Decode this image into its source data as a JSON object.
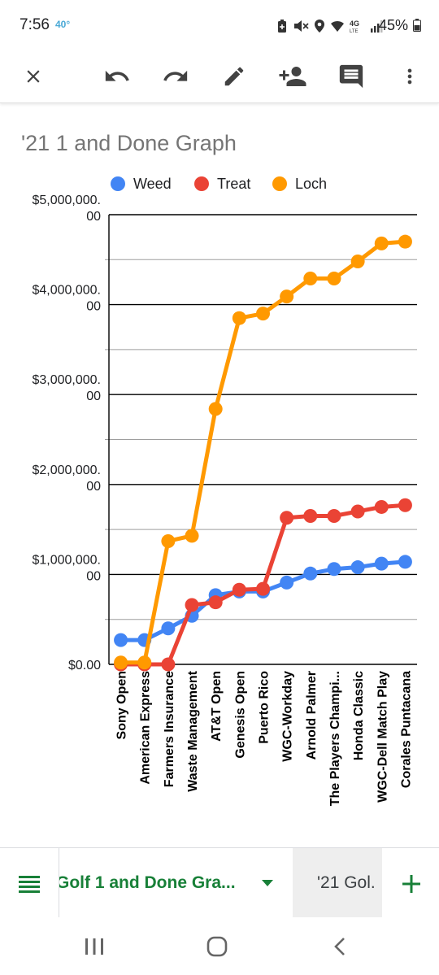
{
  "status_bar": {
    "time": "7:56",
    "temperature": "40°",
    "battery": "45%",
    "icons": [
      "battery-saver-icon",
      "mute-icon",
      "location-icon",
      "wifi-icon",
      "4g-lte-icon",
      "signal-icon",
      "battery-icon"
    ]
  },
  "toolbar": {
    "icons": [
      "close-icon",
      "undo-icon",
      "redo-icon",
      "edit-icon",
      "add-person-icon",
      "comment-icon",
      "more-vert-icon"
    ]
  },
  "chart_data": {
    "type": "line",
    "title": "'21 1 and Done Graph",
    "legend_position": "top",
    "categories": [
      "Sony Open",
      "American Express",
      "Farmers Insurance",
      "Waste Management",
      "AT&T Open",
      "Genesis Open",
      "Puerto Rico",
      "WGC-Workday",
      "Arnold Palmer",
      "The Players Champi...",
      "Honda Classic",
      "WGC-Dell Match Play",
      "Corales Puntacana"
    ],
    "y_tick_labels": [
      "$0.00",
      "$1,000,000.\n00",
      "$2,000,000.\n00",
      "$3,000,000.\n00",
      "$4,000,000.\n00",
      "$5,000,000.\n00"
    ],
    "ylim": [
      0,
      5000000
    ],
    "y_major_step": 1000000,
    "y_minor_step": 500000,
    "series": [
      {
        "name": "Weed",
        "color": "#4285f4",
        "values": [
          270000,
          270000,
          400000,
          540000,
          770000,
          810000,
          810000,
          910000,
          1010000,
          1060000,
          1080000,
          1120000,
          1140000
        ]
      },
      {
        "name": "Treat",
        "color": "#ea4335",
        "values": [
          0,
          0,
          0,
          660000,
          690000,
          830000,
          840000,
          1630000,
          1650000,
          1650000,
          1700000,
          1750000,
          1770000
        ]
      },
      {
        "name": "Loch",
        "color": "#ff9900",
        "values": [
          20000,
          20000,
          1370000,
          1430000,
          2840000,
          3850000,
          3900000,
          4090000,
          4290000,
          4290000,
          4480000,
          4680000,
          4700000
        ]
      }
    ]
  },
  "bottom_bar": {
    "active_sheet": "Golf 1 and Done Gra...",
    "inactive_sheet": "'21 Gol.",
    "accent_color": "#188038"
  },
  "nav_bar": {
    "icons": [
      "recent-apps-icon",
      "home-icon",
      "back-icon"
    ]
  }
}
